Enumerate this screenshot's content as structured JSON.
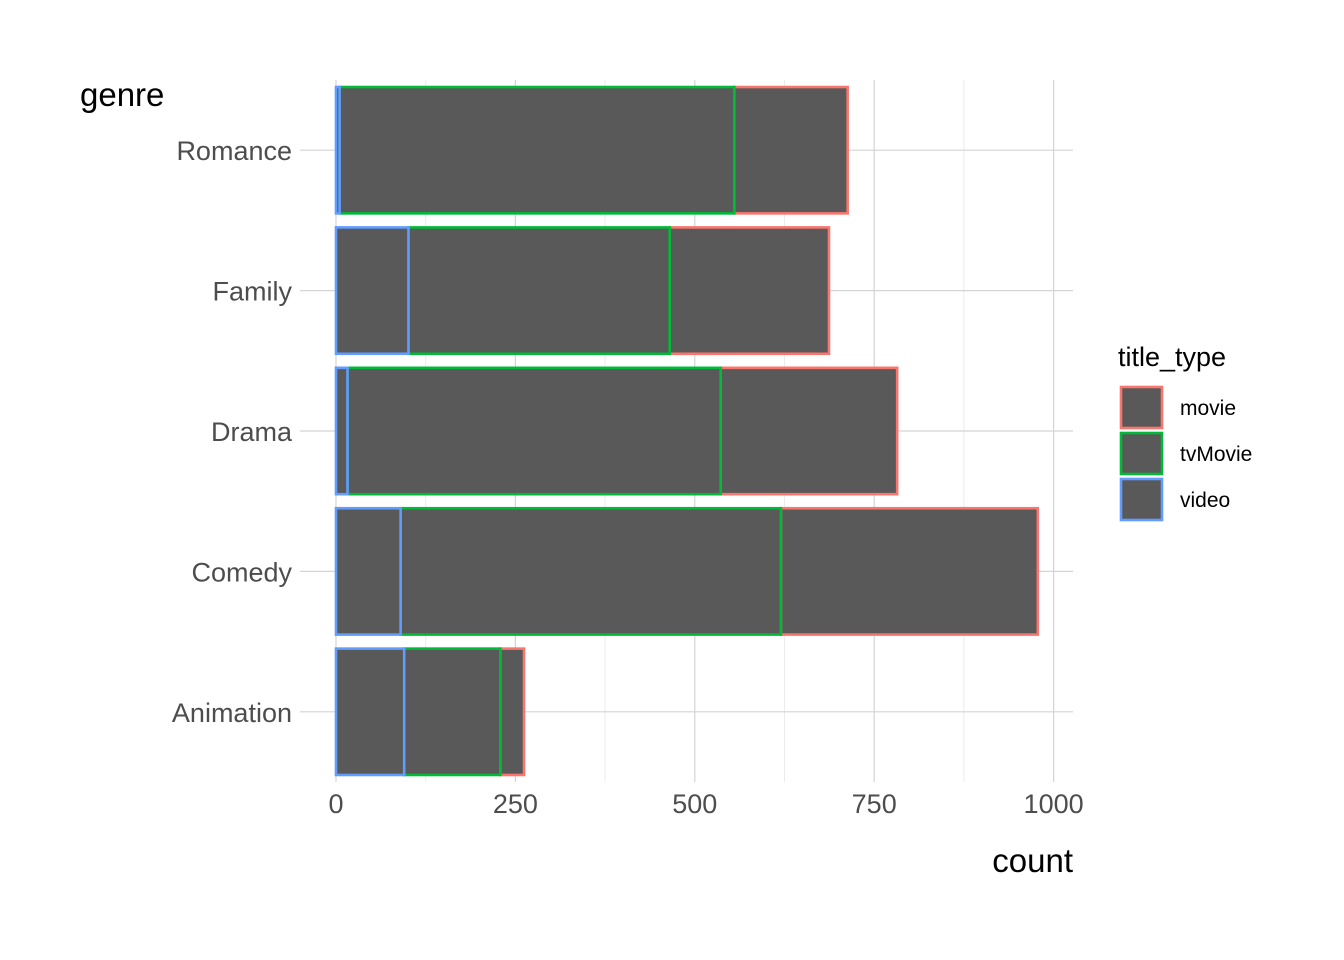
{
  "chart_data": {
    "type": "bar",
    "orientation": "horizontal",
    "stacked": true,
    "xlabel": "count",
    "ylabel": "genre",
    "xlim": [
      0,
      1030
    ],
    "x_ticks": [
      0,
      250,
      500,
      750,
      1000
    ],
    "x_tick_labels": [
      "0",
      "250",
      "500",
      "750",
      "1000"
    ],
    "categories": [
      "Animation",
      "Comedy",
      "Drama",
      "Family",
      "Romance"
    ],
    "series": [
      {
        "name": "movie",
        "values": [
          33,
          358,
          246,
          222,
          158
        ],
        "outline_color": "#F8766D"
      },
      {
        "name": "tvMovie",
        "values": [
          134,
          530,
          520,
          364,
          550
        ],
        "outline_color": "#00BA38"
      },
      {
        "name": "video",
        "values": [
          95,
          90,
          16,
          101,
          5
        ],
        "outline_color": "#619CFF"
      }
    ],
    "fill_color": "#595959",
    "legend": {
      "title": "title_type",
      "position": "right"
    },
    "grid": true
  }
}
